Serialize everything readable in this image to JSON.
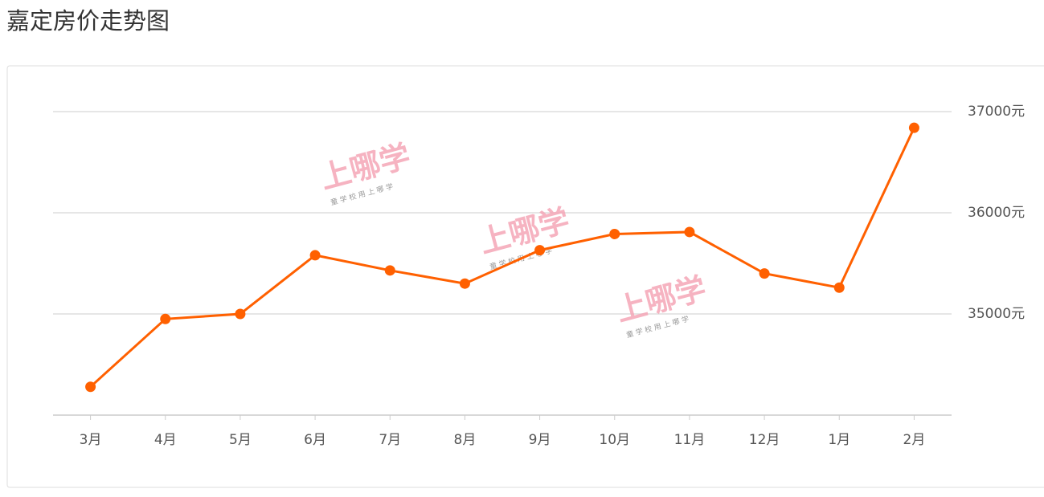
{
  "chart_data": {
    "type": "line",
    "title": "嘉定房价走势图",
    "categories": [
      "3月",
      "4月",
      "5月",
      "6月",
      "7月",
      "8月",
      "9月",
      "10月",
      "11月",
      "12月",
      "1月",
      "2月"
    ],
    "series": [
      {
        "name": null,
        "color": "#ff6000",
        "values": [
          34280,
          34950,
          35000,
          35580,
          35430,
          35300,
          35630,
          35790,
          35810,
          35400,
          35260,
          36840
        ]
      }
    ],
    "ylim": [
      34000,
      37000
    ],
    "yticks": [
      {
        "value": 35000,
        "label": "35000元"
      },
      {
        "value": 36000,
        "label": "36000元"
      },
      {
        "value": 37000,
        "label": "37000元"
      }
    ],
    "grid": true,
    "watermark": {
      "text": "上哪学",
      "subtext": "童 学 校   用 上 哪 学"
    }
  }
}
